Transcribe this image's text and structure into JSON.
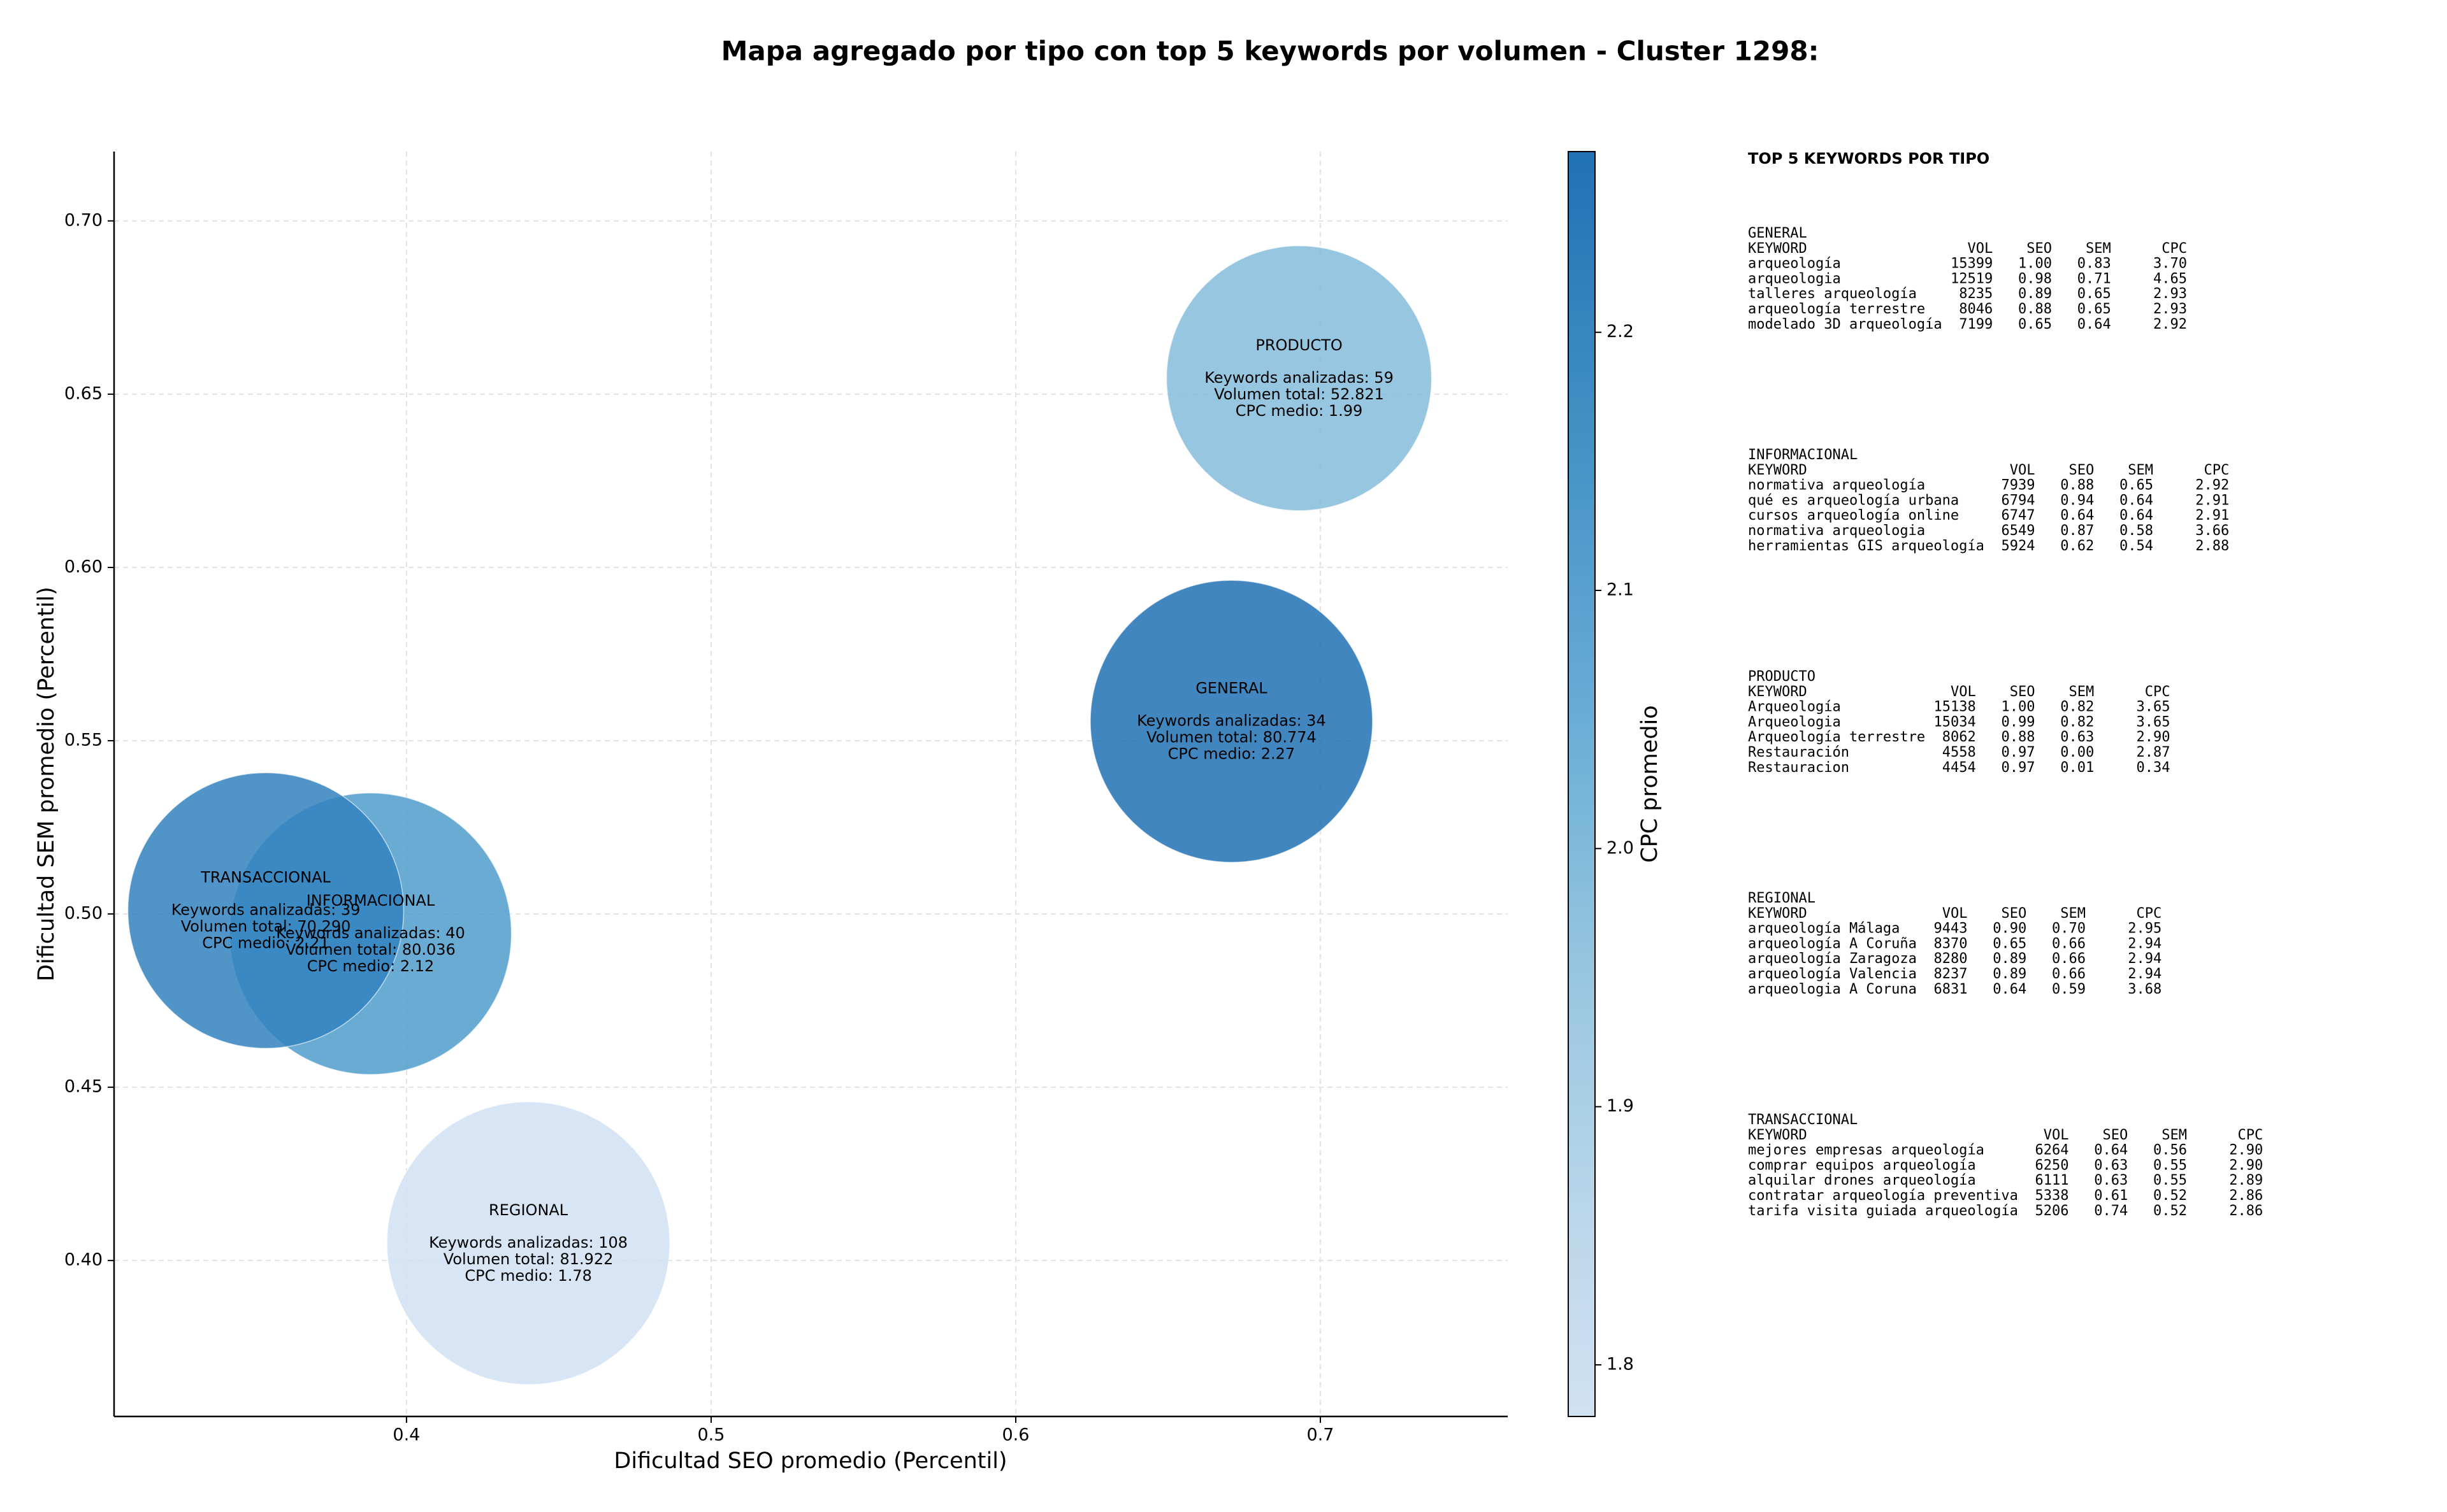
{
  "chart_data": {
    "type": "bubble",
    "title": "Mapa agregado por tipo con top 5 keywords por volumen - Cluster 1298:",
    "xlabel": "Dificultad SEO promedio (Percentil)",
    "ylabel": "Dificultad SEM promedio (Percentil)",
    "colorbar_label": "CPC promedio",
    "colormap": "Blues",
    "grid": true,
    "xlim": [
      0.304,
      0.7615
    ],
    "ylim": [
      0.355,
      0.72
    ],
    "clim": [
      1.78,
      2.27
    ],
    "xticks": [
      0.4,
      0.5,
      0.6,
      0.7
    ],
    "yticks": [
      {
        "value": 0.4,
        "label": "0.40"
      },
      0.45,
      {
        "value": 0.5,
        "label": "0.50"
      },
      0.55,
      {
        "value": 0.6,
        "label": "0.60"
      },
      0.65,
      {
        "value": 0.7,
        "label": "0.70"
      }
    ],
    "cticks": [
      1.8,
      1.9,
      {
        "value": 2.0,
        "label": "2.0"
      },
      2.1,
      2.2
    ],
    "categories": [
      "GENERAL",
      "INFORMACIONAL",
      "PRODUCTO",
      "REGIONAL",
      "TRANSACCIONAL"
    ],
    "x": [
      0.6708,
      0.3882,
      0.693,
      0.44,
      0.3538
    ],
    "values": [
      0.5556,
      0.4943,
      0.6546,
      0.405,
      0.501
    ],
    "sizes": [
      80774,
      80036,
      52821,
      81922,
      70290
    ],
    "colors": [
      2.27,
      2.12,
      1.99,
      1.78,
      2.21
    ],
    "annotations": [
      [
        "Keywords analizadas: 34",
        "Volumen total: 80.774",
        "CPC medio: 2.27"
      ],
      [
        "Keywords analizadas: 40",
        "Volumen total: 80.036",
        "CPC medio: 2.12"
      ],
      [
        "Keywords analizadas: 59",
        "Volumen total: 52.821",
        "CPC medio: 1.99"
      ],
      [
        "Keywords analizadas: 108",
        "Volumen total: 81.922",
        "CPC medio: 1.78"
      ],
      [
        "Keywords analizadas: 39",
        "Volumen total: 70.290",
        "CPC medio: 2.21"
      ]
    ]
  },
  "keyword_tables": {
    "title": "TOP 5 KEYWORDS POR TIPO",
    "header": [
      "KEYWORD",
      "VOL",
      "SEO",
      "SEM",
      "CPC"
    ],
    "sections": [
      {
        "name": "GENERAL",
        "rows": [
          [
            "arqueología",
            "15399",
            "1.00",
            "0.83",
            "3.70"
          ],
          [
            "arqueologia",
            "12519",
            "0.98",
            "0.71",
            "4.65"
          ],
          [
            "talleres arqueología",
            "8235",
            "0.89",
            "0.65",
            "2.93"
          ],
          [
            "arqueología terrestre",
            "8046",
            "0.88",
            "0.65",
            "2.93"
          ],
          [
            "modelado 3D arqueología",
            "7199",
            "0.65",
            "0.64",
            "2.92"
          ]
        ]
      },
      {
        "name": "INFORMACIONAL",
        "rows": [
          [
            "normativa arqueología",
            "7939",
            "0.88",
            "0.65",
            "2.92"
          ],
          [
            "qué es arqueología urbana",
            "6794",
            "0.94",
            "0.64",
            "2.91"
          ],
          [
            "cursos arqueología online",
            "6747",
            "0.64",
            "0.64",
            "2.91"
          ],
          [
            "normativa arqueologia",
            "6549",
            "0.87",
            "0.58",
            "3.66"
          ],
          [
            "herramientas GIS arqueología",
            "5924",
            "0.62",
            "0.54",
            "2.88"
          ]
        ]
      },
      {
        "name": "PRODUCTO",
        "rows": [
          [
            "Arqueología",
            "15138",
            "1.00",
            "0.82",
            "3.65"
          ],
          [
            "Arqueologia",
            "15034",
            "0.99",
            "0.82",
            "3.65"
          ],
          [
            "Arqueología terrestre",
            "8062",
            "0.88",
            "0.63",
            "2.90"
          ],
          [
            "Restauración",
            "4558",
            "0.97",
            "0.00",
            "2.87"
          ],
          [
            "Restauracion",
            "4454",
            "0.97",
            "0.01",
            "0.34"
          ]
        ]
      },
      {
        "name": "REGIONAL",
        "rows": [
          [
            "arqueología Málaga",
            "9443",
            "0.90",
            "0.70",
            "2.95"
          ],
          [
            "arqueología A Coruña",
            "8370",
            "0.65",
            "0.66",
            "2.94"
          ],
          [
            "arqueología Zaragoza",
            "8280",
            "0.89",
            "0.66",
            "2.94"
          ],
          [
            "arqueología Valencia",
            "8237",
            "0.89",
            "0.66",
            "2.94"
          ],
          [
            "arqueologia A Coruna",
            "6831",
            "0.64",
            "0.59",
            "3.68"
          ]
        ]
      },
      {
        "name": "TRANSACCIONAL",
        "rows": [
          [
            "mejores empresas arqueología",
            "6264",
            "0.64",
            "0.56",
            "2.90"
          ],
          [
            "comprar equipos arqueología",
            "6250",
            "0.63",
            "0.55",
            "2.90"
          ],
          [
            "alquilar drones arqueología",
            "6111",
            "0.63",
            "0.55",
            "2.89"
          ],
          [
            "contratar arqueología preventiva",
            "5338",
            "0.61",
            "0.52",
            "2.86"
          ],
          [
            "tarifa visita guiada arqueología",
            "5206",
            "0.74",
            "0.52",
            "2.86"
          ]
        ]
      }
    ]
  }
}
